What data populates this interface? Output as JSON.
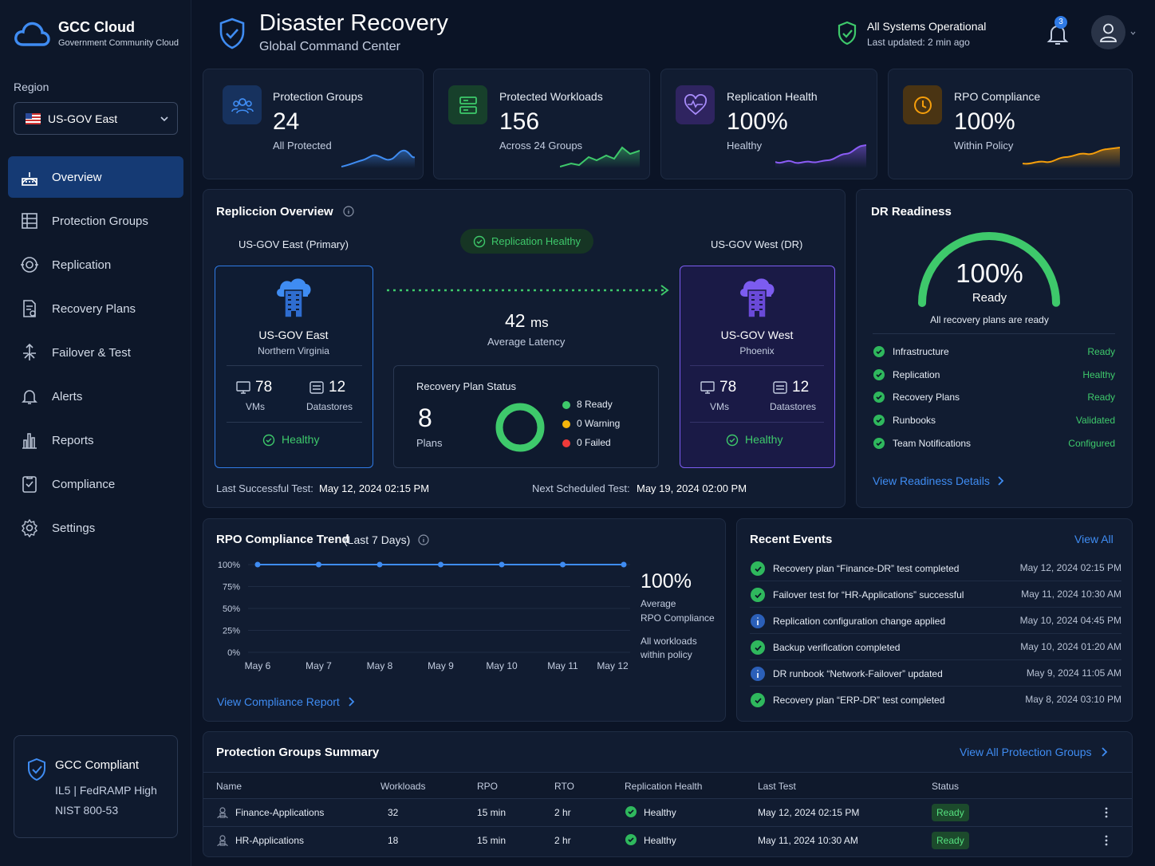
{
  "brand": {
    "title": "GCC Cloud",
    "subtitle": "Government Community Cloud"
  },
  "region": {
    "label": "Region",
    "selected": "US-GOV East"
  },
  "nav": [
    {
      "label": "Overview",
      "icon": "overview-icon",
      "active": true
    },
    {
      "label": "Protection Groups",
      "icon": "protection-groups-icon"
    },
    {
      "label": "Replication",
      "icon": "replication-icon"
    },
    {
      "label": "Recovery Plans",
      "icon": "recovery-plans-icon"
    },
    {
      "label": "Failover & Test",
      "icon": "failover-icon"
    },
    {
      "label": "Alerts",
      "icon": "bell-icon"
    },
    {
      "label": "Reports",
      "icon": "reports-icon"
    },
    {
      "label": "Compliance",
      "icon": "compliance-icon"
    },
    {
      "label": "Settings",
      "icon": "gear-icon"
    }
  ],
  "compliance_box": {
    "title": "GCC Compliant",
    "line1": "IL5 | FedRAMP High",
    "line2": "NIST 800-53"
  },
  "header": {
    "title": "Disaster Recovery",
    "subtitle": "Global Command Center",
    "status": "All Systems Operational",
    "updated": "Last updated: 2 min ago",
    "notifications": "3"
  },
  "stats": [
    {
      "label": "Protection Groups",
      "value": "24",
      "sub": "All Protected",
      "color": "#3f8cf2"
    },
    {
      "label": "Protected Workloads",
      "value": "156",
      "sub": "Across 24 Groups",
      "color": "#3ec96b"
    },
    {
      "label": "Replication Health",
      "value": "100%",
      "sub": "Healthy",
      "color": "#8b5cf6"
    },
    {
      "label": "RPO Compliance",
      "value": "100%",
      "sub": "Within Policy",
      "color": "#f59e0b"
    }
  ],
  "replication": {
    "title": "Repliccion Overview",
    "primary_label": "US-GOV East (Primary)",
    "dr_label": "US-GOV West (DR)",
    "status_pill": "Replication Healthy",
    "primary": {
      "name": "US-GOV East",
      "location": "Northern Virginia",
      "vms": "78",
      "vms_label": "VMs",
      "datastores": "12",
      "datastores_label": "Datastores",
      "status": "Healthy"
    },
    "dr": {
      "name": "US-GOV West",
      "location": "Phoenix",
      "vms": "78",
      "vms_label": "VMs",
      "datastores": "12",
      "datastores_label": "Datastores",
      "status": "Healthy"
    },
    "latency_value": "42",
    "latency_unit": "ms",
    "latency_label": "Average Latency",
    "plan_status": {
      "title": "Recovery Plan Status",
      "count": "8",
      "count_label": "Plans",
      "ready": "8 Ready",
      "warning": "0 Warning",
      "failed": "0 Failed",
      "ready_count": 8,
      "warning_count": 0,
      "failed_count": 0
    },
    "last_test_label": "Last Successful Test:",
    "last_test": "May 12, 2024 02:15 PM",
    "next_test_label": "Next Scheduled Test:",
    "next_test": "May 19, 2024 02:00 PM"
  },
  "readiness": {
    "title": "DR Readiness",
    "value": "100%",
    "value_fraction": 1.0,
    "label": "Ready",
    "caption": "All recovery plans are ready",
    "items": [
      {
        "name": "Infrastructure",
        "status": "Ready"
      },
      {
        "name": "Replication",
        "status": "Healthy"
      },
      {
        "name": "Recovery Plans",
        "status": "Ready"
      },
      {
        "name": "Runbooks",
        "status": "Validated"
      },
      {
        "name": "Team Notifications",
        "status": "Configured"
      }
    ],
    "link": "View Readiness Details"
  },
  "rpo": {
    "title": "RPO Compliance Trend",
    "title_suffix": "(Last 7 Days)",
    "big_value": "100%",
    "caption1": "Average",
    "caption2": "RPO Compliance",
    "note1": "All workloads",
    "note2": "within policy",
    "link": "View Compliance Report"
  },
  "chart_data": {
    "type": "line",
    "categories": [
      "May 6",
      "May 7",
      "May 8",
      "May 9",
      "May 10",
      "May 11",
      "May 12"
    ],
    "series": [
      {
        "values": [
          100,
          100,
          100,
          100,
          100,
          100,
          100
        ]
      }
    ],
    "yticks": [
      "100%",
      "75%",
      "50%",
      "25%",
      "0%"
    ],
    "ylim": [
      0,
      100
    ],
    "title": "RPO Compliance Trend (Last 7 Days)",
    "grid": true
  },
  "events": {
    "title": "Recent Events",
    "view_all": "View All",
    "items": [
      {
        "text": "Recovery plan “Finance-DR” test completed",
        "time": "May 12, 2024 02:15 PM",
        "kind": "success"
      },
      {
        "text": "Failover test for “HR-Applications” successful",
        "time": "May 11, 2024 10:30 AM",
        "kind": "success"
      },
      {
        "text": "Replication configuration change applied",
        "time": "May 10, 2024 04:45 PM",
        "kind": "info"
      },
      {
        "text": "Backup verification completed",
        "time": "May 10, 2024 01:20 AM",
        "kind": "success"
      },
      {
        "text": "DR runbook “Network-Failover” updated",
        "time": "May 9, 2024 11:05 AM",
        "kind": "info"
      },
      {
        "text": "Recovery plan “ERP-DR” test completed",
        "time": "May 8, 2024 03:10 PM",
        "kind": "success"
      }
    ]
  },
  "summary": {
    "title": "Protection Groups Summary",
    "link": "View All Protection Groups",
    "columns": [
      "Name",
      "Workloads",
      "RPO",
      "RTO",
      "Replication Health",
      "Last Test",
      "Status"
    ],
    "rows": [
      {
        "name": "Finance-Applications",
        "workloads": "32",
        "rpo": "15 min",
        "rto": "2 hr",
        "health": "Healthy",
        "last_test": "May 12, 2024 02:15 PM",
        "status": "Ready"
      },
      {
        "name": "HR-Applications",
        "workloads": "18",
        "rpo": "15 min",
        "rto": "2 hr",
        "health": "Healthy",
        "last_test": "May 11, 2024 10:30 AM",
        "status": "Ready"
      }
    ]
  }
}
